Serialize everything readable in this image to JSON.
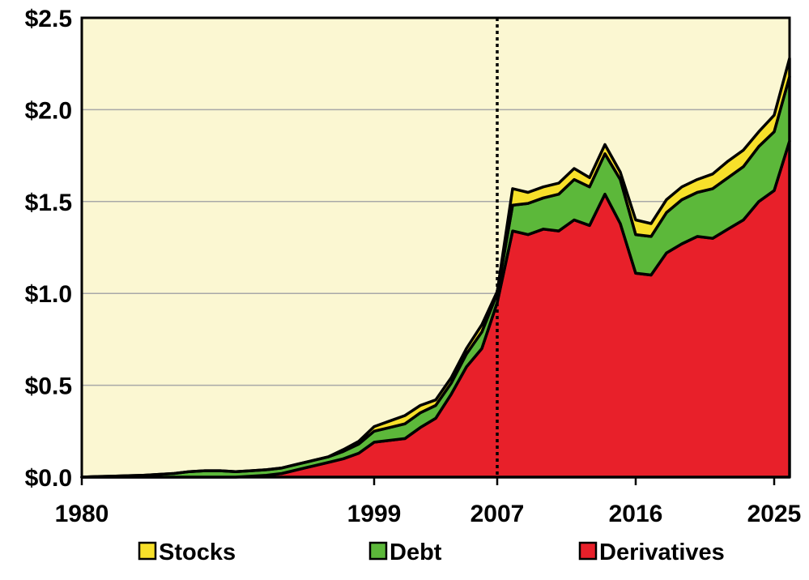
{
  "chart_data": {
    "type": "area",
    "stacked": true,
    "x": [
      1980,
      1981,
      1982,
      1983,
      1984,
      1985,
      1986,
      1987,
      1988,
      1989,
      1990,
      1991,
      1992,
      1993,
      1994,
      1995,
      1996,
      1997,
      1998,
      1999,
      2000,
      2001,
      2002,
      2003,
      2004,
      2005,
      2006,
      2007,
      2008,
      2009,
      2010,
      2011,
      2012,
      2013,
      2014,
      2015,
      2016,
      2017,
      2018,
      2019,
      2020,
      2021,
      2022,
      2023,
      2024,
      2025,
      2026
    ],
    "series": [
      {
        "name": "Derivatives",
        "color": "#e8202a",
        "values": [
          0,
          0,
          0,
          0,
          0,
          0,
          0,
          0,
          0,
          0,
          0,
          0.005,
          0.01,
          0.02,
          0.04,
          0.06,
          0.08,
          0.1,
          0.13,
          0.19,
          0.2,
          0.21,
          0.27,
          0.32,
          0.45,
          0.6,
          0.7,
          0.95,
          1.34,
          1.32,
          1.35,
          1.34,
          1.4,
          1.37,
          1.54,
          1.38,
          1.11,
          1.1,
          1.22,
          1.27,
          1.31,
          1.3,
          1.35,
          1.4,
          1.5,
          1.56,
          1.83
        ]
      },
      {
        "name": "Debt",
        "color": "#5cb83a",
        "values": [
          0,
          0.003,
          0.005,
          0.008,
          0.01,
          0.015,
          0.02,
          0.03,
          0.035,
          0.035,
          0.03,
          0.03,
          0.03,
          0.03,
          0.03,
          0.03,
          0.03,
          0.04,
          0.05,
          0.06,
          0.07,
          0.08,
          0.08,
          0.07,
          0.06,
          0.07,
          0.09,
          0.05,
          0.14,
          0.17,
          0.17,
          0.2,
          0.22,
          0.21,
          0.22,
          0.24,
          0.21,
          0.21,
          0.22,
          0.24,
          0.24,
          0.27,
          0.28,
          0.29,
          0.3,
          0.32,
          0.35
        ]
      },
      {
        "name": "Stocks",
        "color": "#f7e02a",
        "values": [
          0,
          0,
          0,
          0,
          0,
          0,
          0,
          0,
          0,
          0,
          0,
          0,
          0,
          0,
          0,
          0,
          0,
          0.01,
          0.015,
          0.025,
          0.035,
          0.045,
          0.04,
          0.03,
          0.03,
          0.03,
          0.04,
          0.01,
          0.09,
          0.06,
          0.06,
          0.06,
          0.06,
          0.05,
          0.05,
          0.04,
          0.08,
          0.07,
          0.07,
          0.07,
          0.07,
          0.08,
          0.09,
          0.09,
          0.08,
          0.09,
          0.1
        ]
      }
    ],
    "yticks": [
      "$0.0",
      "$0.5",
      "$1.0",
      "$1.5",
      "$2.0",
      "$2.5"
    ],
    "ytick_values": [
      0,
      0.5,
      1.0,
      1.5,
      2.0,
      2.5
    ],
    "ylim": [
      0,
      2.5
    ],
    "xlim": [
      1980,
      2026
    ],
    "xticks": [
      1980,
      1999,
      2007,
      2016,
      2025
    ],
    "xtick_labels": [
      "1980",
      "1999",
      "2007",
      "2016",
      "2025"
    ],
    "vline": 2007,
    "grid": "horizontal",
    "background": "#fbf7d2",
    "legend": {
      "placement": "bottom",
      "items": [
        {
          "label": "Stocks",
          "color": "#f7e02a"
        },
        {
          "label": "Debt",
          "color": "#5cb83a"
        },
        {
          "label": "Derivatives",
          "color": "#e8202a"
        }
      ]
    },
    "title": "",
    "xlabel": "",
    "ylabel": ""
  }
}
